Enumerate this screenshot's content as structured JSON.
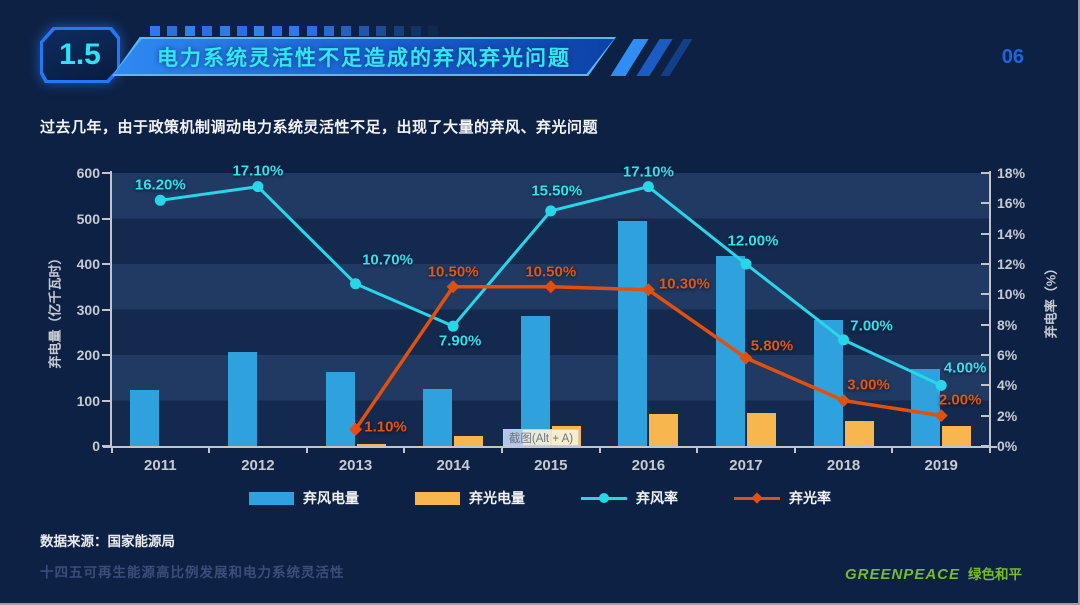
{
  "page": {
    "number": "06",
    "background": "#0d2144"
  },
  "header": {
    "badge": "1.5",
    "title": "电力系统灵活性不足造成的弃风弃光问题",
    "title_color": "#2ee8f5",
    "decor_dots": [
      "#2f77ea",
      "#2b6fe2",
      "#3180f0",
      "#2b6fe2",
      "#2e7ae8",
      "#2b6fe2",
      "#3180f0",
      "#2b6fe2",
      "#2e7ae8",
      "#2b6fe2",
      "#2a68d6",
      "#2760c4",
      "#2355ae",
      "#1e4a97",
      "#193e7e",
      "#143264",
      "#10294f"
    ]
  },
  "subtitle": "过去几年，由于政策机制调动电力系统灵活性不足，出现了大量的弃风、弃光问题",
  "chart_data": {
    "type": "bar+line",
    "categories": [
      "2011",
      "2012",
      "2013",
      "2014",
      "2015",
      "2016",
      "2017",
      "2018",
      "2019"
    ],
    "series": [
      {
        "name": "弃风电量",
        "type": "bar",
        "axis": "left",
        "color": "#2fa2dd",
        "marker": "rect",
        "values": [
          123,
          207,
          162,
          126,
          285,
          495,
          418,
          276,
          169
        ]
      },
      {
        "name": "弃光电量",
        "type": "bar",
        "axis": "left",
        "color": "#f8b64f",
        "marker": "rect",
        "values": [
          null,
          null,
          5,
          22,
          45,
          70,
          73,
          55,
          45
        ]
      },
      {
        "name": "弃风率",
        "type": "line",
        "axis": "right",
        "color": "#29d6e8",
        "marker": "circle",
        "values": [
          16.2,
          17.1,
          10.7,
          7.9,
          15.5,
          17.1,
          12.0,
          7.0,
          4.0
        ],
        "labels": [
          "16.20%",
          "17.10%",
          "10.70%",
          "7.90%",
          "15.50%",
          "17.10%",
          "12.00%",
          "7.00%",
          "4.00%"
        ],
        "label_color": "#2ee2ee"
      },
      {
        "name": "弃光率",
        "type": "line",
        "axis": "right",
        "color": "#e2500f",
        "marker": "diamond",
        "values": [
          null,
          null,
          1.1,
          10.5,
          10.5,
          10.3,
          5.8,
          3.0,
          2.0
        ],
        "labels": [
          null,
          null,
          "1.10%",
          "10.50%",
          "10.50%",
          "10.30%",
          "5.80%",
          "3.00%",
          "2.00%"
        ],
        "label_color": "#e65511"
      }
    ],
    "left_axis": {
      "name": "弃电量（亿千瓦时）",
      "min": 0,
      "max": 600,
      "step": 100,
      "ticks": [
        "0",
        "100",
        "200",
        "300",
        "400",
        "500",
        "600"
      ]
    },
    "right_axis": {
      "name": "弃电率（%）",
      "min": 0,
      "max": 18,
      "step": 2,
      "ticks": [
        "0%",
        "2%",
        "4%",
        "6%",
        "8%",
        "10%",
        "12%",
        "14%",
        "16%",
        "18%"
      ]
    },
    "grid": "horizontal-bands",
    "band_colors": [
      "#203a63",
      "#13294e"
    ],
    "legend_position": "bottom",
    "legend": {
      "items": [
        {
          "label": "弃风电量",
          "swatch": "bar",
          "color": "#2fa2dd"
        },
        {
          "label": "弃光电量",
          "swatch": "bar",
          "color": "#f8b64f"
        },
        {
          "label": "弃风率",
          "swatch": "line",
          "marker": "circle",
          "color": "#29d6e8"
        },
        {
          "label": "弃光率",
          "swatch": "line",
          "marker": "diamond",
          "color": "#e2500f"
        }
      ]
    }
  },
  "tooltip_overlay": {
    "text": "截图(Alt + A)"
  },
  "source": "数据来源：国家能源局",
  "footer": {
    "report_title": "十四五可再生能源高比例发展和电力系统灵活性",
    "brand_en": "GREENPEACE",
    "brand_cn": "绿色和平",
    "brand_color": "#78ba2e"
  }
}
